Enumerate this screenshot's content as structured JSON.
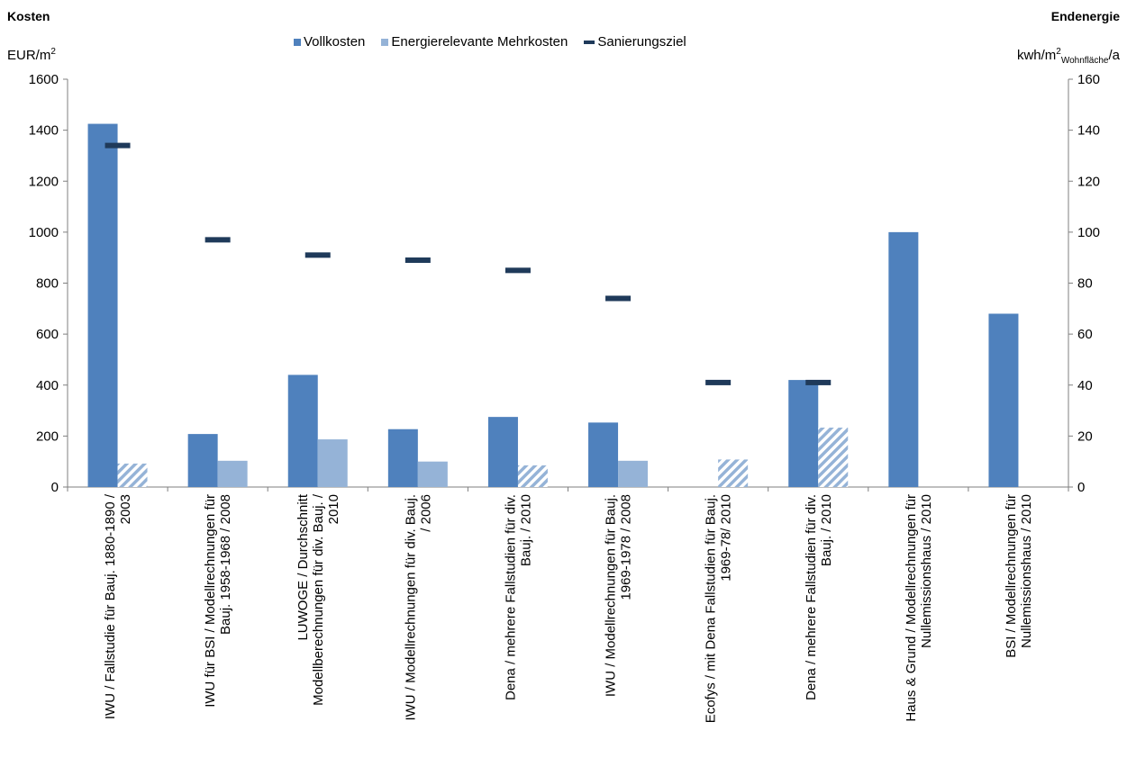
{
  "colors": {
    "vollkosten": "#4f81bd",
    "mehrkosten": "#95b3d7",
    "sanierungsziel": "#1f3a5a",
    "axis": "#7f7f7f"
  },
  "header": {
    "title_left": "Kosten",
    "title_right": "Endenergie",
    "unit_left": "EUR/m",
    "unit_left_sup": "2",
    "unit_right_main": "kwh/m",
    "unit_right_sup": "2",
    "unit_right_sub": "Wohnfläche",
    "unit_right_tail": "/a"
  },
  "legend": {
    "vollkosten": "Vollkosten",
    "mehrkosten": "Energierelevante Mehrkosten",
    "sanierungsziel": "Sanierungsziel"
  },
  "chart_data": {
    "type": "bar",
    "categories": [
      [
        "IWU / Fallstudie für Bauj. 1880-1890 /",
        "2003"
      ],
      [
        "IWU für BSI / Modellrechnungen für",
        "Bauj. 1958-1968 / 2008"
      ],
      [
        "LUWOGE / Durchschnitt",
        "Modellberechnungen für div. Bauj. /",
        "2010"
      ],
      [
        "IWU / Modellrechnungen für div. Bauj.",
        "/ 2006"
      ],
      [
        "Dena / mehrere Fallstudien für div.",
        "Bauj. / 2010"
      ],
      [
        "IWU / Modellrechnungen für Bauj.",
        "1969-1978 / 2008"
      ],
      [
        "Ecofys / mit Dena Fallstudien für Bauj.",
        "1969-78/ 2010"
      ],
      [
        "Dena / mehrere Fallstudien für div.",
        "Bauj. / 2010"
      ],
      [
        "Haus & Grund / Modellrechnungen für",
        "Nullemissionshaus / 2010"
      ],
      [
        "BSI / Modellrechnungen für",
        "Nullemissionshaus / 2010"
      ]
    ],
    "series": [
      {
        "name": "Vollkosten",
        "axis": "left",
        "values": [
          1425,
          208,
          440,
          227,
          275,
          253,
          null,
          420,
          1000,
          680
        ]
      },
      {
        "name": "Energierelevante Mehrkosten",
        "axis": "left",
        "values": [
          92,
          103,
          187,
          100,
          85,
          103,
          108,
          233,
          null,
          null
        ],
        "hatched": [
          true,
          false,
          false,
          false,
          true,
          false,
          true,
          true,
          false,
          false
        ]
      },
      {
        "name": "Sanierungsziel",
        "axis": "right",
        "values": [
          134,
          97,
          91,
          89,
          85,
          74,
          41,
          41,
          null,
          null
        ]
      }
    ],
    "ylim": [
      0,
      1600
    ],
    "yticks": [
      0,
      200,
      400,
      600,
      800,
      1000,
      1200,
      1400,
      1600
    ],
    "y2lim": [
      0,
      160
    ],
    "y2ticks": [
      0,
      20,
      40,
      60,
      80,
      100,
      120,
      140,
      160
    ],
    "grid": false,
    "legend_position": "top"
  }
}
